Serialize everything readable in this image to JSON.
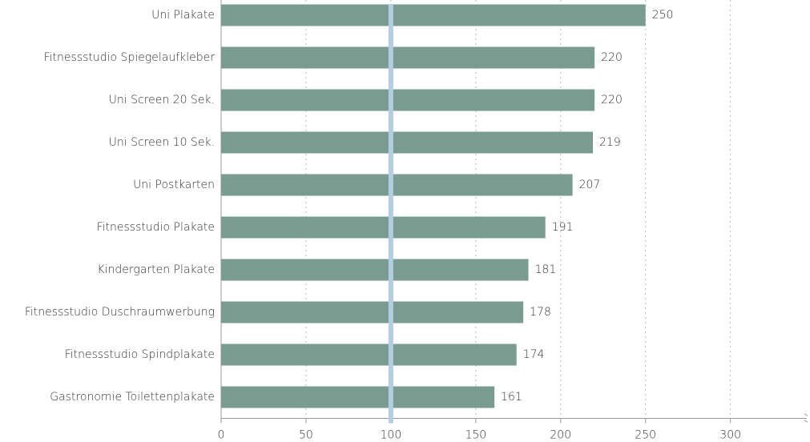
{
  "chart_data": {
    "type": "barh",
    "categories": [
      "Uni Plakate",
      "Fitnessstudio Spiegelaufkleber",
      "Uni Screen 20 Sek.",
      "Uni Screen 10 Sek.",
      "Uni Postkarten",
      "Fitnessstudio Plakate",
      "Kindergarten Plakate",
      "Fitnessstudio Duschraumwerbung",
      "Fitnessstudio Spindplakate",
      "Gastronomie Toilettenplakate"
    ],
    "values": [
      250,
      220,
      220,
      219,
      207,
      191,
      181,
      178,
      174,
      161
    ],
    "color": "#7a9b8f",
    "xlim": [
      0,
      345
    ],
    "xticks": [
      0,
      50,
      100,
      150,
      200,
      250,
      300
    ],
    "grid": true,
    "reference_line": {
      "value": 100,
      "color": "#b3cde3"
    }
  }
}
